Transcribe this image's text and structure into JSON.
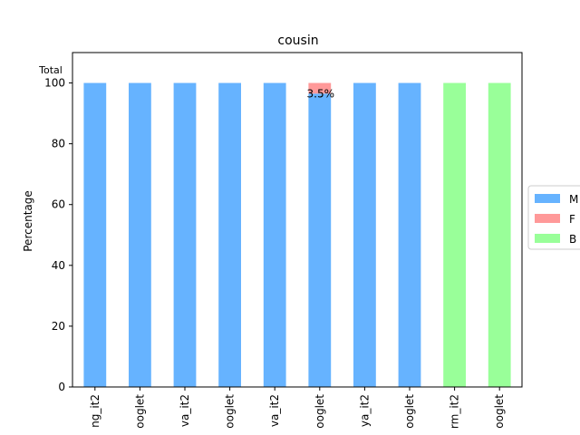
{
  "chart_data": {
    "type": "bar",
    "stacked": true,
    "title": "cousin",
    "xlabel": "",
    "ylabel": "Percentage",
    "corner_label": "Total",
    "ylim": [
      0,
      110
    ],
    "yticks": [
      0,
      20,
      40,
      60,
      80,
      100
    ],
    "grid": false,
    "legend_placement": "right-outside",
    "categories": [
      "ng_it2",
      "ooglet",
      "va_it2",
      "ooglet",
      "va_it2",
      "ooglet",
      "ya_it2",
      "ooglet",
      "rm_it2",
      "ooglet"
    ],
    "series": [
      {
        "name": "M",
        "color": "#66b3ff",
        "values": [
          100,
          100,
          100,
          100,
          100,
          96.5,
          100,
          100,
          0,
          0
        ]
      },
      {
        "name": "F",
        "color": "#ff9999",
        "values": [
          0,
          0,
          0,
          0,
          0,
          3.5,
          0,
          0,
          0,
          0
        ]
      },
      {
        "name": "B",
        "color": "#99ff99",
        "values": [
          0,
          0,
          0,
          0,
          0,
          0,
          0,
          0,
          100,
          100
        ]
      }
    ],
    "annotations": [
      {
        "category_index": 5,
        "y": 96.5,
        "text": "3.5%"
      }
    ]
  }
}
